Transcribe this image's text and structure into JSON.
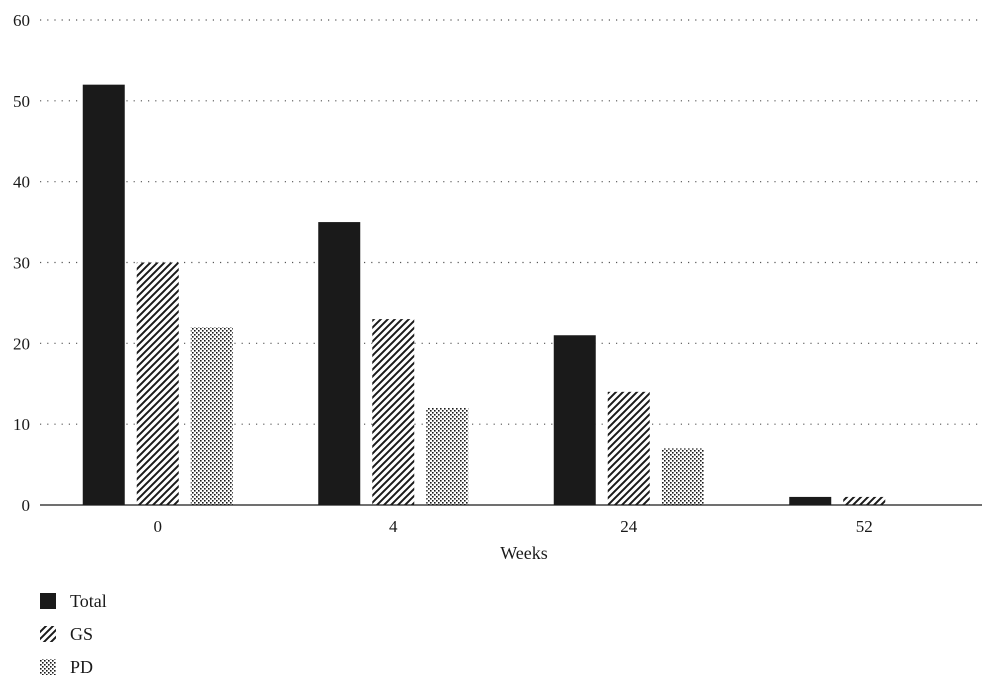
{
  "chart_data": {
    "type": "bar",
    "title": "",
    "xlabel": "Weeks",
    "ylabel": "",
    "ylim": [
      0,
      60
    ],
    "yticks": [
      "0",
      "10",
      "20",
      "30",
      "40",
      "50",
      "60"
    ],
    "categories": [
      "0",
      "4",
      "24",
      "52"
    ],
    "grid": "horizontal dotted",
    "legend_position": "bottom-left",
    "series": [
      {
        "name": "Total",
        "values": [
          52,
          35,
          21,
          1
        ],
        "pattern": "solid",
        "color": "#1a1a1a"
      },
      {
        "name": "GS",
        "values": [
          30,
          23,
          14,
          1
        ],
        "pattern": "diagonal-hatch",
        "color": "#1a1a1a"
      },
      {
        "name": "PD",
        "values": [
          22,
          12,
          7,
          0
        ],
        "pattern": "dots",
        "color": "#1a1a1a"
      }
    ]
  }
}
